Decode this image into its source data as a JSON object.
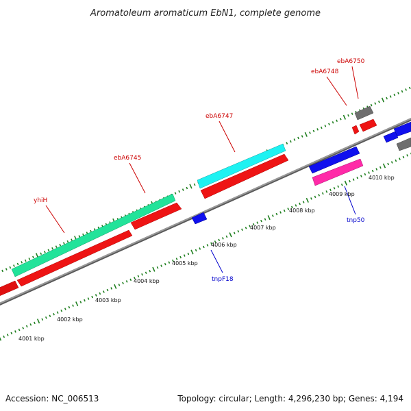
{
  "title": "Aromatoleum aromaticum EbN1, complete genome",
  "footer": {
    "accession": "Accession: NC_006513",
    "summary": "Topology: circular; Length: 4,296,230 bp; Genes: 4,194"
  },
  "kbp_labels": [
    "4001 kbp",
    "4002 kbp",
    "4003 kbp",
    "4004 kbp",
    "4005 kbp",
    "4006 kbp",
    "4007 kbp",
    "4008 kbp",
    "4009 kbp",
    "4010 kbp"
  ],
  "gene_labels": [
    {
      "text": "yhiH",
      "color": "#cc0000"
    },
    {
      "text": "ebA6745",
      "color": "#cc0000"
    },
    {
      "text": "ebA6747",
      "color": "#cc0000"
    },
    {
      "text": "ebA6748",
      "color": "#cc0000"
    },
    {
      "text": "ebA6750",
      "color": "#cc0000"
    },
    {
      "text": "tnpF18",
      "color": "#0000cc"
    },
    {
      "text": "tnp50",
      "color": "#0000cc"
    }
  ],
  "colors": {
    "forward_gene": "#ff1a1a",
    "reverse_gene": "#1a1aff",
    "cds_green": "#22e39a",
    "cds_cyan": "#1ef2f2",
    "cds_magenta": "#ff2aa8",
    "pseudo_gray": "#707070",
    "tick": "#1f7f1f",
    "backbone": "#8c8c8c"
  }
}
